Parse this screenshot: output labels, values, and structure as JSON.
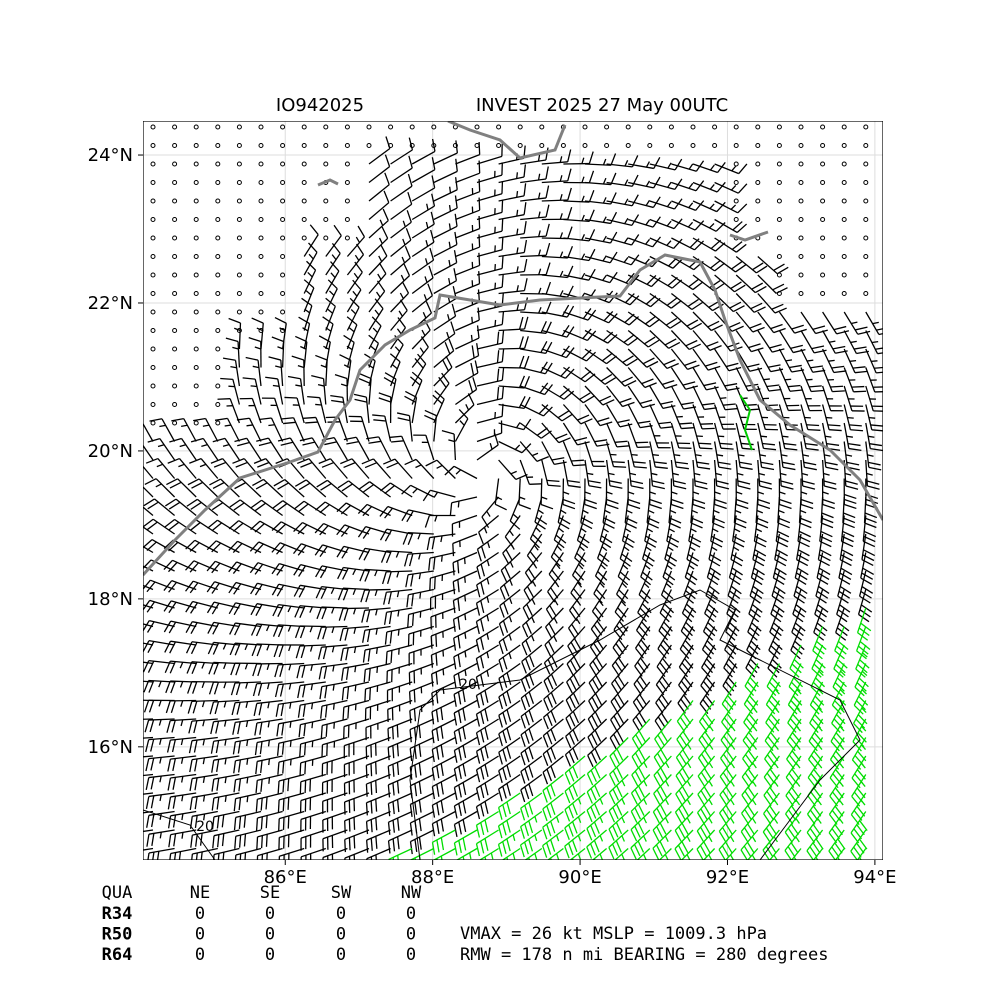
{
  "chart_data": {
    "type": "windbarb",
    "title_left": "IO942025",
    "title": "INVEST 2025 27 May 00UTC",
    "xlim": [
      84.07,
      94.11
    ],
    "ylim": [
      14.47,
      24.46
    ],
    "xticks": [
      {
        "value": 86,
        "label": "86°E"
      },
      {
        "value": 88,
        "label": "88°E"
      },
      {
        "value": 90,
        "label": "90°E"
      },
      {
        "value": 92,
        "label": "92°E"
      },
      {
        "value": 94,
        "label": "94°E"
      }
    ],
    "yticks": [
      {
        "value": 16,
        "label": "16°N"
      },
      {
        "value": 18,
        "label": "18°N"
      },
      {
        "value": 20,
        "label": "20°N"
      },
      {
        "value": 22,
        "label": "22°N"
      },
      {
        "value": 24,
        "label": "24°N"
      }
    ],
    "grid": true,
    "contour_labels": [
      "20",
      "20"
    ],
    "radii_table": {
      "header": [
        "QUA",
        "NE",
        "SE",
        "SW",
        "NW"
      ],
      "rows": [
        [
          "R34",
          "0",
          "0",
          "0",
          "0"
        ],
        [
          "R50",
          "0",
          "0",
          "0",
          "0"
        ],
        [
          "R64",
          "0",
          "0",
          "0",
          "0"
        ]
      ]
    },
    "stats": [
      "VMAX =  26 kt MSLP = 1009.3 hPa",
      "RMW = 178 n mi BEARING = 280 degrees"
    ]
  }
}
